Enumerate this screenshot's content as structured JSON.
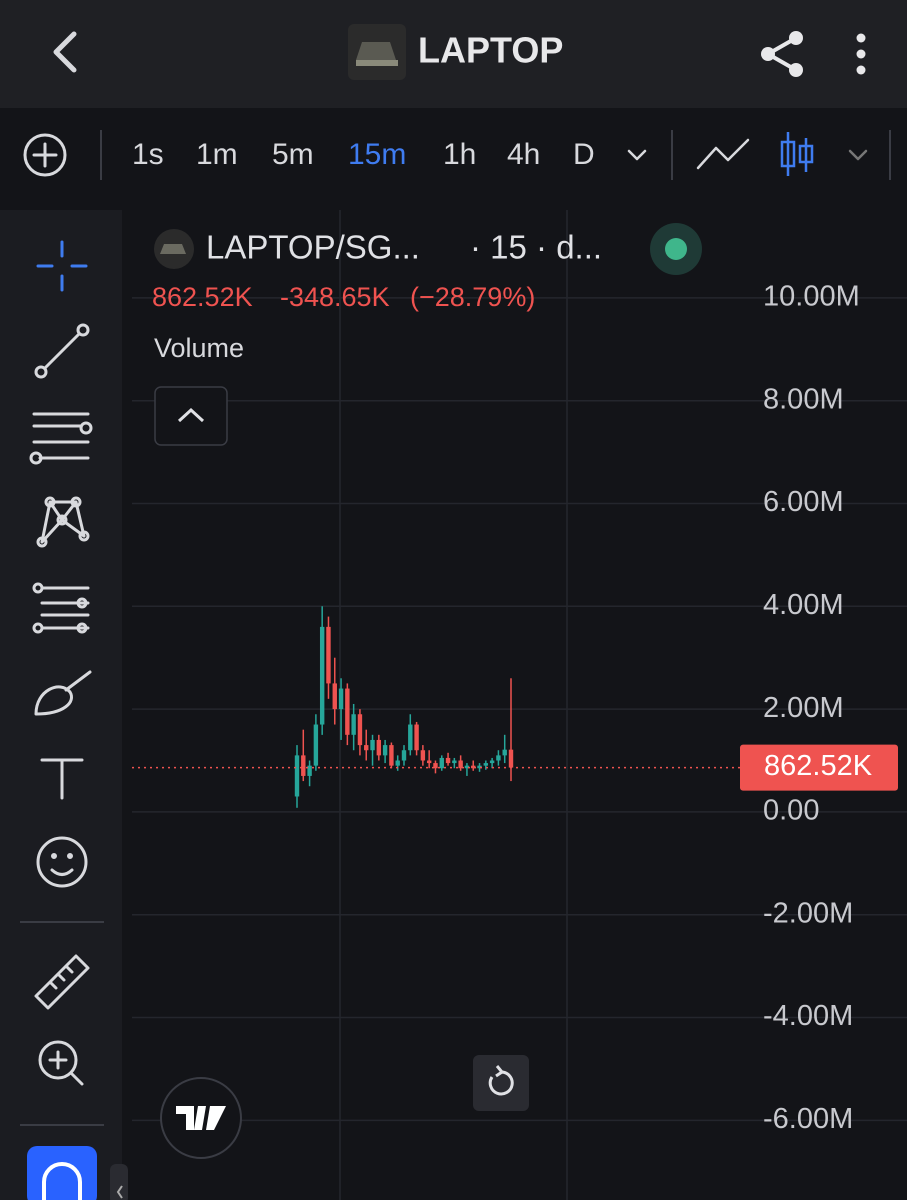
{
  "header": {
    "title": "LAPTOP"
  },
  "toolbar": {
    "intervals": [
      "1s",
      "1m",
      "5m",
      "15m",
      "1h",
      "4h",
      "D"
    ]
  },
  "legend": {
    "symbol": "LAPTOP/SG...",
    "meta": "· 15 · d...",
    "indicator": "Volume"
  },
  "chart_data": {
    "type": "candlestick",
    "ylim": [
      -7550000,
      11710000
    ],
    "yticks": [
      {
        "value": 10000000,
        "label": "10.00M"
      },
      {
        "value": 8000000,
        "label": "8.00M"
      },
      {
        "value": 6000000,
        "label": "6.00M"
      },
      {
        "value": 4000000,
        "label": "4.00M"
      },
      {
        "value": 2000000,
        "label": "2.00M"
      },
      {
        "value": 0,
        "label": "0.00"
      },
      {
        "value": -2000000,
        "label": "-2.00M"
      },
      {
        "value": -4000000,
        "label": "-4.00M"
      },
      {
        "value": -6000000,
        "label": "-6.00M"
      }
    ],
    "grid": true,
    "up_color": "#26a69a",
    "down_color": "#ef5350",
    "last_price": {
      "value": 862520,
      "label": "862.52K"
    },
    "change": {
      "value": -348650,
      "label": "-348.65K"
    },
    "change_percent": {
      "value": -28.79,
      "label": "(−28.79%)"
    },
    "open": [
      300000,
      1100000,
      700000,
      900000,
      1700000,
      3600000,
      2500000,
      2000000,
      2400000,
      1500000,
      1900000,
      1300000,
      1200000,
      1400000,
      1100000,
      1300000,
      900000,
      1000000,
      1200000,
      1700000,
      1200000,
      1000000,
      950000,
      850000,
      1050000,
      950000,
      1000000,
      850000,
      900000,
      850000,
      900000,
      950000,
      1000000,
      1100000,
      1211170
    ],
    "high": [
      1300000,
      1600000,
      1000000,
      1900000,
      4000000,
      3800000,
      3000000,
      2600000,
      2500000,
      2100000,
      2000000,
      1600000,
      1500000,
      1500000,
      1400000,
      1350000,
      1100000,
      1300000,
      1900000,
      1750000,
      1300000,
      1200000,
      1000000,
      1100000,
      1150000,
      1050000,
      1100000,
      950000,
      1000000,
      950000,
      1000000,
      1050000,
      1200000,
      1500000,
      2600000
    ],
    "low": [
      80000,
      600000,
      500000,
      800000,
      1500000,
      2200000,
      1700000,
      1400000,
      1300000,
      1200000,
      1100000,
      1000000,
      900000,
      1000000,
      950000,
      850000,
      800000,
      900000,
      1100000,
      1100000,
      900000,
      850000,
      750000,
      800000,
      900000,
      850000,
      800000,
      700000,
      800000,
      780000,
      820000,
      850000,
      900000,
      950000,
      600000
    ],
    "close": [
      1100000,
      700000,
      900000,
      1700000,
      3600000,
      2500000,
      2000000,
      2400000,
      1500000,
      1900000,
      1300000,
      1200000,
      1400000,
      1100000,
      1300000,
      900000,
      1000000,
      1200000,
      1700000,
      1200000,
      1000000,
      950000,
      850000,
      1050000,
      950000,
      1000000,
      850000,
      900000,
      850000,
      900000,
      950000,
      1000000,
      1100000,
      1211170,
      862520
    ]
  }
}
